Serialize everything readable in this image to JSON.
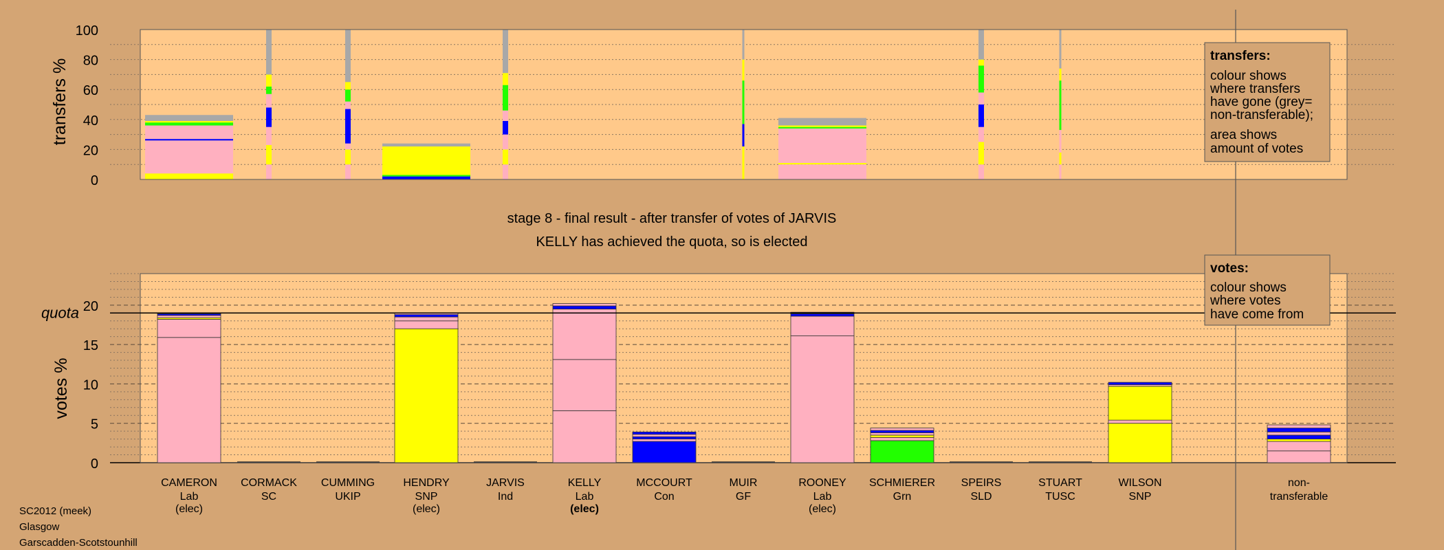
{
  "colors": {
    "background": "#d4a574",
    "plot_bg": "#ffc98a",
    "Lab": "#ffb0c0",
    "SNP": "#ffff00",
    "Grn": "#22ff00",
    "Con": "#0000ff",
    "nontransferable": "#a8a8a8"
  },
  "stage_title": "stage 8 - final result - after transfer of votes of JARVIS",
  "stage_subtitle": "KELLY has achieved the quota, so is elected",
  "footer": {
    "line1": "SC2012 (meek)",
    "line2": "Glasgow",
    "line3": "Garscadden-Scotstounhill"
  },
  "quota_label": "quota",
  "legend_transfers": {
    "title": "transfers:",
    "lines": [
      "colour shows",
      "where transfers",
      "have gone (grey=",
      "non-transferable);",
      "area shows",
      "amount of votes"
    ]
  },
  "legend_votes": {
    "title": "votes:",
    "lines": [
      "colour shows",
      "where votes",
      "have come from"
    ]
  },
  "chart_data": [
    {
      "type": "bar",
      "ylabel": "transfers %",
      "ylim": [
        0,
        100
      ],
      "yticks": [
        0,
        20,
        40,
        60,
        80,
        100
      ],
      "bars": [
        {
          "category": "CAMERON",
          "width": "wide",
          "segments": [
            {
              "color": "SNP",
              "from": 0,
              "to": 4
            },
            {
              "color": "Lab",
              "from": 4,
              "to": 26
            },
            {
              "color": "Con",
              "from": 26,
              "to": 27
            },
            {
              "color": "Lab",
              "from": 27,
              "to": 36
            },
            {
              "color": "Grn",
              "from": 36,
              "to": 38
            },
            {
              "color": "SNP",
              "from": 38,
              "to": 39
            },
            {
              "color": "nontransferable",
              "from": 39,
              "to": 43
            }
          ]
        },
        {
          "category": "CORMACK",
          "width": "thin",
          "segments": [
            {
              "color": "Lab",
              "from": 0,
              "to": 10
            },
            {
              "color": "SNP",
              "from": 10,
              "to": 23
            },
            {
              "color": "Lab",
              "from": 23,
              "to": 35
            },
            {
              "color": "Con",
              "from": 35,
              "to": 48
            },
            {
              "color": "Lab",
              "from": 48,
              "to": 57
            },
            {
              "color": "Grn",
              "from": 57,
              "to": 62
            },
            {
              "color": "SNP",
              "from": 62,
              "to": 70
            },
            {
              "color": "nontransferable",
              "from": 70,
              "to": 100
            }
          ]
        },
        {
          "category": "CUMMING",
          "width": "thin",
          "segments": [
            {
              "color": "Lab",
              "from": 0,
              "to": 10
            },
            {
              "color": "SNP",
              "from": 10,
              "to": 20
            },
            {
              "color": "Lab",
              "from": 20,
              "to": 24
            },
            {
              "color": "Con",
              "from": 24,
              "to": 47
            },
            {
              "color": "Lab",
              "from": 47,
              "to": 52
            },
            {
              "color": "Grn",
              "from": 52,
              "to": 60
            },
            {
              "color": "SNP",
              "from": 60,
              "to": 65
            },
            {
              "color": "nontransferable",
              "from": 65,
              "to": 100
            }
          ]
        },
        {
          "category": "HENDRY",
          "width": "wide",
          "segments": [
            {
              "color": "Con",
              "from": 0,
              "to": 2
            },
            {
              "color": "Grn",
              "from": 2,
              "to": 3
            },
            {
              "color": "SNP",
              "from": 3,
              "to": 22
            },
            {
              "color": "nontransferable",
              "from": 22,
              "to": 24
            }
          ]
        },
        {
          "category": "JARVIS",
          "width": "thin",
          "segments": [
            {
              "color": "Lab",
              "from": 0,
              "to": 10
            },
            {
              "color": "SNP",
              "from": 10,
              "to": 20
            },
            {
              "color": "Lab",
              "from": 20,
              "to": 30
            },
            {
              "color": "Con",
              "from": 30,
              "to": 39
            },
            {
              "color": "Lab",
              "from": 39,
              "to": 46
            },
            {
              "color": "Grn",
              "from": 46,
              "to": 63
            },
            {
              "color": "SNP",
              "from": 63,
              "to": 71
            },
            {
              "color": "nontransferable",
              "from": 71,
              "to": 100
            }
          ]
        },
        {
          "category": "MUIR",
          "width": "hair",
          "segments": [
            {
              "color": "SNP",
              "from": 0,
              "to": 22
            },
            {
              "color": "Con",
              "from": 22,
              "to": 37
            },
            {
              "color": "Grn",
              "from": 37,
              "to": 66
            },
            {
              "color": "SNP",
              "from": 66,
              "to": 80
            },
            {
              "color": "nontransferable",
              "from": 80,
              "to": 100
            }
          ]
        },
        {
          "category": "ROONEY",
          "width": "wide",
          "segments": [
            {
              "color": "Lab",
              "from": 0,
              "to": 10
            },
            {
              "color": "SNP",
              "from": 10,
              "to": 11
            },
            {
              "color": "Lab",
              "from": 11,
              "to": 34
            },
            {
              "color": "Grn",
              "from": 34,
              "to": 35
            },
            {
              "color": "SNP",
              "from": 35,
              "to": 36
            },
            {
              "color": "nontransferable",
              "from": 36,
              "to": 41
            }
          ]
        },
        {
          "category": "SPEIRS",
          "width": "thin",
          "segments": [
            {
              "color": "Lab",
              "from": 0,
              "to": 10
            },
            {
              "color": "SNP",
              "from": 10,
              "to": 25
            },
            {
              "color": "Lab",
              "from": 25,
              "to": 35
            },
            {
              "color": "Con",
              "from": 35,
              "to": 50
            },
            {
              "color": "Lab",
              "from": 50,
              "to": 58
            },
            {
              "color": "Grn",
              "from": 58,
              "to": 76
            },
            {
              "color": "SNP",
              "from": 76,
              "to": 80
            },
            {
              "color": "nontransferable",
              "from": 80,
              "to": 100
            }
          ]
        },
        {
          "category": "STUART",
          "width": "hair",
          "segments": [
            {
              "color": "Lab",
              "from": 0,
              "to": 10
            },
            {
              "color": "SNP",
              "from": 10,
              "to": 18
            },
            {
              "color": "Lab",
              "from": 18,
              "to": 33
            },
            {
              "color": "Grn",
              "from": 33,
              "to": 66
            },
            {
              "color": "SNP",
              "from": 66,
              "to": 74
            },
            {
              "color": "nontransferable",
              "from": 74,
              "to": 100
            }
          ]
        }
      ]
    },
    {
      "type": "bar",
      "ylabel": "votes %",
      "ylim": [
        0,
        24
      ],
      "yticks": [
        0,
        5,
        10,
        15,
        20
      ],
      "quota": 19,
      "categories": [
        {
          "name": "CAMERON",
          "party": "Lab",
          "status": "(elec)"
        },
        {
          "name": "CORMACK",
          "party": "SC",
          "status": ""
        },
        {
          "name": "CUMMING",
          "party": "UKIP",
          "status": ""
        },
        {
          "name": "HENDRY",
          "party": "SNP",
          "status": "(elec)"
        },
        {
          "name": "JARVIS",
          "party": "Ind",
          "status": ""
        },
        {
          "name": "KELLY",
          "party": "Lab",
          "status": "(elec)"
        },
        {
          "name": "MCCOURT",
          "party": "Con",
          "status": ""
        },
        {
          "name": "MUIR",
          "party": "GF",
          "status": ""
        },
        {
          "name": "ROONEY",
          "party": "Lab",
          "status": "(elec)"
        },
        {
          "name": "SCHMIERER",
          "party": "Grn",
          "status": ""
        },
        {
          "name": "SPEIRS",
          "party": "SLD",
          "status": ""
        },
        {
          "name": "STUART",
          "party": "TUSC",
          "status": ""
        },
        {
          "name": "WILSON",
          "party": "SNP",
          "status": ""
        },
        {
          "name": "non-",
          "party": "transferable",
          "status": ""
        }
      ],
      "bars": [
        {
          "segments": [
            {
              "color": "Lab",
              "from": 0,
              "to": 15.9
            },
            {
              "color": "Lab",
              "from": 15.9,
              "to": 18.2
            },
            {
              "color": "SNP",
              "from": 18.2,
              "to": 18.4
            },
            {
              "color": "Lab",
              "from": 18.4,
              "to": 18.7
            },
            {
              "color": "Con",
              "from": 18.7,
              "to": 18.9
            },
            {
              "color": "Lab",
              "from": 18.9,
              "to": 19.0
            }
          ]
        },
        {
          "segments": []
        },
        {
          "segments": []
        },
        {
          "segments": [
            {
              "color": "SNP",
              "from": 0,
              "to": 17.0
            },
            {
              "color": "Lab",
              "from": 17.0,
              "to": 18.0
            },
            {
              "color": "Lab",
              "from": 18.0,
              "to": 18.5
            },
            {
              "color": "Con",
              "from": 18.5,
              "to": 18.8
            },
            {
              "color": "Lab",
              "from": 18.8,
              "to": 19.0
            }
          ]
        },
        {
          "segments": []
        },
        {
          "segments": [
            {
              "color": "Lab",
              "from": 0,
              "to": 6.6
            },
            {
              "color": "Lab",
              "from": 6.6,
              "to": 13.1
            },
            {
              "color": "Lab",
              "from": 13.1,
              "to": 19.5
            },
            {
              "color": "Con",
              "from": 19.5,
              "to": 19.9
            },
            {
              "color": "Lab",
              "from": 19.9,
              "to": 20.2
            }
          ]
        },
        {
          "segments": [
            {
              "color": "Con",
              "from": 0,
              "to": 2.7
            },
            {
              "color": "Lab",
              "from": 2.7,
              "to": 3.0
            },
            {
              "color": "Con",
              "from": 3.0,
              "to": 3.3
            },
            {
              "color": "Lab",
              "from": 3.3,
              "to": 3.6
            },
            {
              "color": "Con",
              "from": 3.6,
              "to": 3.9
            }
          ]
        },
        {
          "segments": []
        },
        {
          "segments": [
            {
              "color": "Lab",
              "from": 0,
              "to": 16.1
            },
            {
              "color": "Lab",
              "from": 16.1,
              "to": 18.6
            },
            {
              "color": "Con",
              "from": 18.6,
              "to": 18.9
            },
            {
              "color": "Lab",
              "from": 18.9,
              "to": 19.1
            }
          ]
        },
        {
          "segments": [
            {
              "color": "Grn",
              "from": 0,
              "to": 2.8
            },
            {
              "color": "Lab",
              "from": 2.8,
              "to": 3.2
            },
            {
              "color": "SNP",
              "from": 3.2,
              "to": 3.5
            },
            {
              "color": "Lab",
              "from": 3.5,
              "to": 3.8
            },
            {
              "color": "Con",
              "from": 3.8,
              "to": 4.1
            },
            {
              "color": "Lab",
              "from": 4.1,
              "to": 4.4
            }
          ]
        },
        {
          "segments": []
        },
        {
          "segments": []
        },
        {
          "segments": [
            {
              "color": "SNP",
              "from": 0,
              "to": 5.0
            },
            {
              "color": "Lab",
              "from": 5.0,
              "to": 5.4
            },
            {
              "color": "SNP",
              "from": 5.4,
              "to": 9.7
            },
            {
              "color": "Lab",
              "from": 9.7,
              "to": 9.9
            },
            {
              "color": "Con",
              "from": 9.9,
              "to": 10.2
            }
          ]
        },
        {
          "segments": [
            {
              "color": "Lab",
              "from": 0,
              "to": 1.5
            },
            {
              "color": "Lab",
              "from": 1.5,
              "to": 2.7
            },
            {
              "color": "SNP",
              "from": 2.7,
              "to": 3.0
            },
            {
              "color": "Con",
              "from": 3.0,
              "to": 3.5
            },
            {
              "color": "Lab",
              "from": 3.5,
              "to": 3.9
            },
            {
              "color": "Con",
              "from": 3.9,
              "to": 4.4
            },
            {
              "color": "Lab",
              "from": 4.4,
              "to": 4.8
            }
          ]
        }
      ]
    }
  ]
}
